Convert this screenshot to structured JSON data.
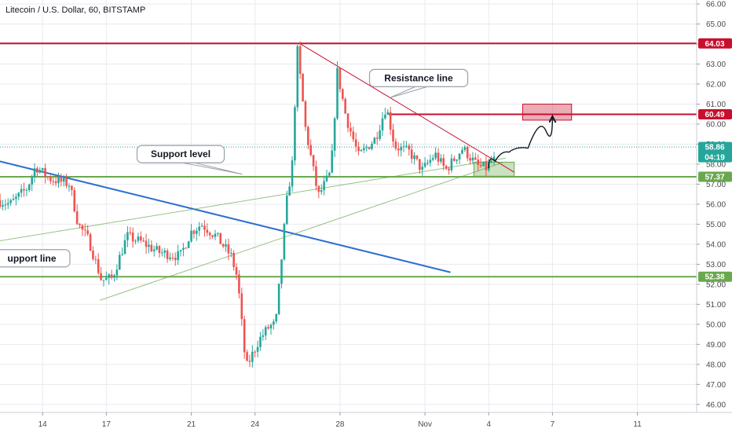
{
  "header": {
    "symbol": "Litecoin / U.S. Dollar, 60, BITSTAMP"
  },
  "colors": {
    "up": "#26a69a",
    "down": "#ef5350",
    "resistance_red": "#c8102e",
    "support_green": "#6aa84f",
    "trend_blue": "#2e6fd1",
    "last_price_teal": "#26a69a",
    "grid": "#e9eaee"
  },
  "chart_data": {
    "type": "candlestick",
    "title": "Litecoin / U.S. Dollar, 60, BITSTAMP",
    "ylim": [
      45.6,
      66.2
    ],
    "y_ticks": [
      "46.00",
      "47.00",
      "48.00",
      "49.00",
      "50.00",
      "51.00",
      "52.00",
      "53.00",
      "54.00",
      "55.00",
      "56.00",
      "57.00",
      "58.00",
      "59.00",
      "60.00",
      "61.00",
      "62.00",
      "63.00",
      "64.00",
      "65.00",
      "66.00"
    ],
    "x_range_days": [
      11,
      31
    ],
    "x_ticks": [
      {
        "label": "14",
        "day": 14
      },
      {
        "label": "17",
        "day": 17
      },
      {
        "label": "21",
        "day": 21
      },
      {
        "label": "24",
        "day": 24
      },
      {
        "label": "28",
        "day": 28
      },
      {
        "label": "Nov",
        "day": 32
      },
      {
        "label": "4",
        "day": 35
      },
      {
        "label": "7",
        "day": 38
      },
      {
        "label": "11",
        "day": 42
      }
    ],
    "price_path": [
      [
        12.0,
        56.2
      ],
      [
        12.6,
        56.0
      ],
      [
        13.4,
        56.8
      ],
      [
        13.8,
        57.9
      ],
      [
        14.4,
        57.3
      ],
      [
        15.4,
        57.0
      ],
      [
        15.8,
        55.0
      ],
      [
        16.3,
        54.2
      ],
      [
        16.9,
        52.2
      ],
      [
        17.4,
        52.3
      ],
      [
        18.1,
        54.4
      ],
      [
        18.8,
        54.1
      ],
      [
        19.6,
        53.6
      ],
      [
        20.6,
        53.4
      ],
      [
        21.1,
        54.6
      ],
      [
        21.6,
        55.0
      ],
      [
        22.3,
        54.4
      ],
      [
        23.0,
        53.4
      ],
      [
        23.3,
        52.3
      ],
      [
        23.7,
        47.8
      ],
      [
        24.3,
        49.2
      ],
      [
        24.8,
        49.9
      ],
      [
        25.1,
        50.0
      ],
      [
        25.6,
        56.0
      ],
      [
        25.9,
        58.2
      ],
      [
        26.1,
        63.9
      ],
      [
        26.5,
        59.8
      ],
      [
        27.1,
        56.4
      ],
      [
        27.7,
        57.6
      ],
      [
        28.0,
        62.6
      ],
      [
        28.4,
        60.4
      ],
      [
        29.0,
        58.4
      ],
      [
        29.8,
        59.3
      ],
      [
        30.3,
        60.9
      ],
      [
        30.7,
        58.9
      ],
      [
        31.4,
        58.6
      ],
      [
        32.0,
        57.7
      ],
      [
        32.6,
        58.5
      ],
      [
        33.1,
        57.7
      ],
      [
        33.9,
        58.8
      ],
      [
        34.6,
        57.9
      ],
      [
        35.0,
        57.8
      ],
      [
        35.3,
        58.2
      ]
    ],
    "series": [],
    "horizontal_levels": [
      {
        "label": "64.03",
        "value": 64.03,
        "color": "resistance_red",
        "from_day": 11
      },
      {
        "label": "60.49",
        "value": 60.49,
        "color": "resistance_red",
        "from_day": 30.3
      },
      {
        "label": "57.37",
        "value": 57.37,
        "color": "support_green",
        "from_day": 11
      },
      {
        "label": "52.38",
        "value": 52.38,
        "color": "support_green",
        "from_day": 11
      }
    ],
    "last_price": {
      "label": "58.86",
      "value": 58.86,
      "countdown": "04:19"
    },
    "trend_lines": [
      {
        "color": "trend_blue",
        "from": [
          11.0,
          58.4
        ],
        "to": [
          33.2,
          52.6
        ]
      },
      {
        "color": "resistance_red",
        "from": [
          26.1,
          64.03
        ],
        "to": [
          36.2,
          57.6
        ]
      },
      {
        "color": "support_green",
        "from": [
          11.0,
          54.0
        ],
        "to": [
          35.8,
          58.3
        ]
      },
      {
        "color": "support_green",
        "from": [
          16.7,
          51.2
        ],
        "to": [
          35.7,
          58.1
        ]
      }
    ],
    "zones": [
      {
        "color": "resistance_red",
        "day_from": 36.6,
        "day_to": 38.9,
        "low": 60.2,
        "high": 61.0
      },
      {
        "color": "support_green",
        "day_from": 34.3,
        "day_to": 36.2,
        "low": 57.4,
        "high": 58.1
      }
    ],
    "annotations": [
      {
        "text": "Resistance line",
        "day": 31.7,
        "price": 62.3,
        "pointer": [
          30.3,
          61.3
        ]
      },
      {
        "text": "Support level",
        "day": 20.5,
        "price": 58.5,
        "pointer": [
          23.4,
          57.5
        ]
      },
      {
        "text": "upport line",
        "day": 11.0,
        "price": 53.3
      }
    ],
    "projection": {
      "points": [
        [
          35.0,
          57.8
        ],
        [
          35.6,
          58.5
        ],
        [
          36.3,
          58.7
        ],
        [
          37.4,
          58.9
        ],
        [
          38.0,
          60.4
        ]
      ]
    },
    "grid": true
  }
}
